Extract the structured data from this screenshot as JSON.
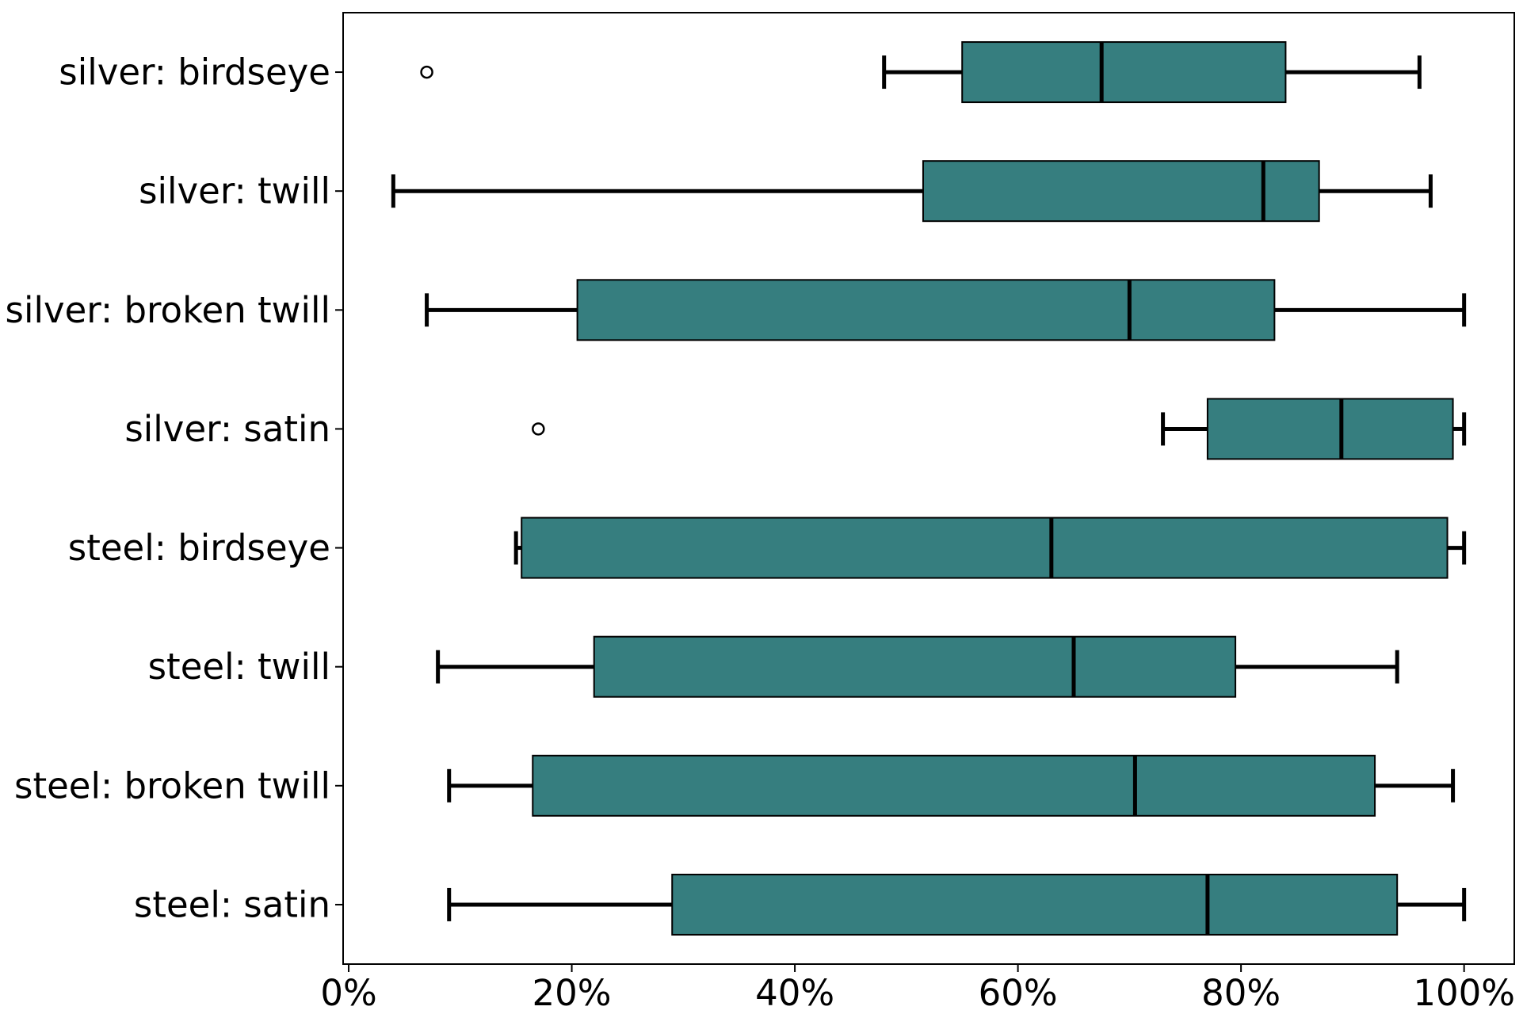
{
  "chart_data": {
    "type": "boxplot",
    "orientation": "horizontal",
    "title": "",
    "xlabel": "",
    "ylabel": "",
    "xlim": [
      -0.5,
      104.5
    ],
    "x_ticks": [
      0,
      20,
      40,
      60,
      80,
      100
    ],
    "x_tick_labels": [
      "0%",
      "20%",
      "40%",
      "60%",
      "80%",
      "100%"
    ],
    "grid": false,
    "legend": "none",
    "box_color": "#367E7F",
    "categories": [
      "silver: birdseye",
      "silver: twill",
      "silver: broken twill",
      "silver: satin",
      "steel: birdseye",
      "steel: twill",
      "steel: broken twill",
      "steel: satin"
    ],
    "boxes": [
      {
        "whislo": 48,
        "q1": 55,
        "med": 67.5,
        "q3": 84,
        "whishi": 96,
        "fliers": [
          7
        ]
      },
      {
        "whislo": 4,
        "q1": 51.5,
        "med": 82,
        "q3": 87,
        "whishi": 97,
        "fliers": []
      },
      {
        "whislo": 7,
        "q1": 20.5,
        "med": 70,
        "q3": 83,
        "whishi": 100,
        "fliers": []
      },
      {
        "whislo": 73,
        "q1": 77,
        "med": 89,
        "q3": 99,
        "whishi": 100,
        "fliers": [
          17
        ]
      },
      {
        "whislo": 15,
        "q1": 15.5,
        "med": 63,
        "q3": 98.5,
        "whishi": 100,
        "fliers": []
      },
      {
        "whislo": 8,
        "q1": 22,
        "med": 65,
        "q3": 79.5,
        "whishi": 94,
        "fliers": []
      },
      {
        "whislo": 9,
        "q1": 16.5,
        "med": 70.5,
        "q3": 92,
        "whishi": 99,
        "fliers": []
      },
      {
        "whislo": 9,
        "q1": 29,
        "med": 77,
        "q3": 94,
        "whishi": 100,
        "fliers": []
      }
    ]
  }
}
